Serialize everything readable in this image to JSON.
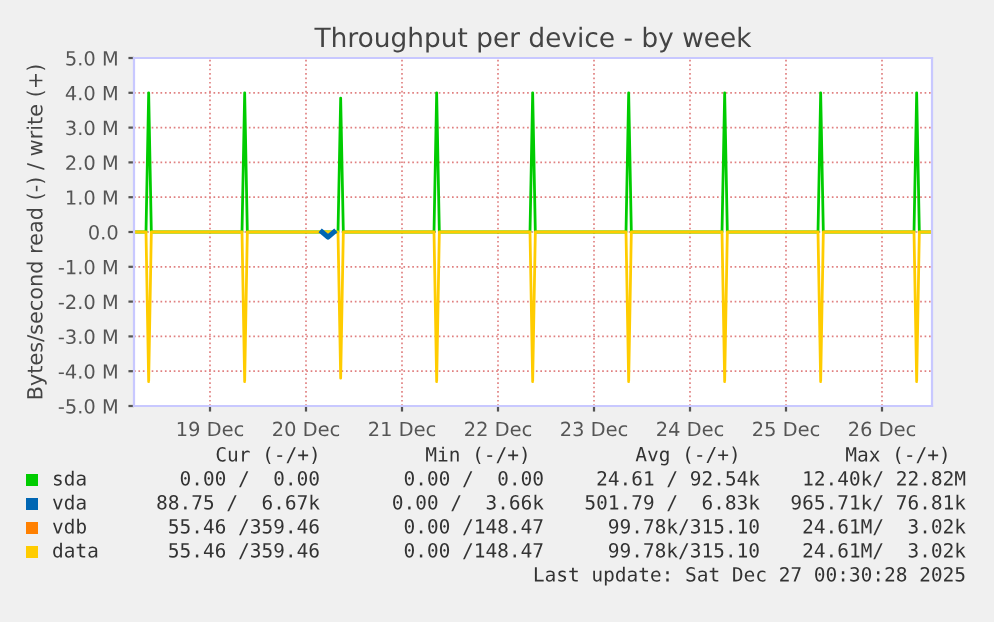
{
  "chart_data": {
    "type": "line",
    "title": "Throughput per device - by week",
    "ylabel": "Bytes/second read (-) / write (+)",
    "xlim": [
      "2025-12-18T17:00",
      "2025-12-27T00:30"
    ],
    "xticks": [
      {
        "value": "2025-12-19T12:00",
        "label": "19 Dec"
      },
      {
        "value": "2025-12-20T12:00",
        "label": "20 Dec"
      },
      {
        "value": "2025-12-21T12:00",
        "label": "21 Dec"
      },
      {
        "value": "2025-12-22T12:00",
        "label": "22 Dec"
      },
      {
        "value": "2025-12-23T12:00",
        "label": "23 Dec"
      },
      {
        "value": "2025-12-24T12:00",
        "label": "24 Dec"
      },
      {
        "value": "2025-12-25T12:00",
        "label": "25 Dec"
      },
      {
        "value": "2025-12-26T12:00",
        "label": "26 Dec"
      }
    ],
    "ylim": [
      -5000000,
      5000000
    ],
    "yticks": [
      {
        "value": -5000000,
        "label": "-5.0 M"
      },
      {
        "value": -4000000,
        "label": "-4.0 M"
      },
      {
        "value": -3000000,
        "label": "-3.0 M"
      },
      {
        "value": -2000000,
        "label": "-2.0 M"
      },
      {
        "value": -1000000,
        "label": "-1.0 M"
      },
      {
        "value": 0,
        "label": "0.0"
      },
      {
        "value": 1000000,
        "label": "1.0 M"
      },
      {
        "value": 2000000,
        "label": "2.0 M"
      },
      {
        "value": 3000000,
        "label": "3.0 M"
      },
      {
        "value": 4000000,
        "label": "4.0 M"
      },
      {
        "value": 5000000,
        "label": "5.0 M"
      }
    ],
    "grid": true,
    "legend": "bottom",
    "marker": "none",
    "line_style": "solid",
    "series": [
      {
        "name": "sda",
        "color": "#00cc00",
        "x": [
          "2025-12-18T17:00",
          "2025-12-18T20:00",
          "2025-12-18T20:40",
          "2025-12-18T21:20",
          "2025-12-19T20:00",
          "2025-12-19T20:40",
          "2025-12-19T21:20",
          "2025-12-20T20:00",
          "2025-12-20T20:40",
          "2025-12-20T21:20",
          "2025-12-21T20:00",
          "2025-12-21T20:40",
          "2025-12-21T21:20",
          "2025-12-22T20:00",
          "2025-12-22T20:40",
          "2025-12-22T21:20",
          "2025-12-23T20:00",
          "2025-12-23T20:40",
          "2025-12-23T21:20",
          "2025-12-24T20:00",
          "2025-12-24T20:40",
          "2025-12-24T21:20",
          "2025-12-25T20:00",
          "2025-12-25T20:40",
          "2025-12-25T21:20",
          "2025-12-26T20:00",
          "2025-12-26T20:40",
          "2025-12-26T21:20",
          "2025-12-27T00:30"
        ],
        "values": [
          0,
          0,
          4000000,
          0,
          0,
          4000000,
          0,
          0,
          3850000,
          0,
          0,
          4000000,
          0,
          0,
          4000000,
          0,
          0,
          4000000,
          0,
          0,
          4000000,
          0,
          0,
          4000000,
          0,
          0,
          4000000,
          0,
          0
        ]
      },
      {
        "name": "vda",
        "color": "#0066b3",
        "x": [
          "2025-12-20T16:00",
          "2025-12-20T17:30",
          "2025-12-20T19:00"
        ],
        "values": [
          0,
          -150000,
          0
        ]
      },
      {
        "name": "vdb",
        "color": "#ff8000"
      },
      {
        "name": "data",
        "color": "#ffcc00",
        "x": [
          "2025-12-18T17:00",
          "2025-12-18T20:00",
          "2025-12-18T20:40",
          "2025-12-18T21:20",
          "2025-12-19T20:00",
          "2025-12-19T20:40",
          "2025-12-19T21:20",
          "2025-12-20T20:00",
          "2025-12-20T20:40",
          "2025-12-20T21:20",
          "2025-12-21T20:00",
          "2025-12-21T20:40",
          "2025-12-21T21:20",
          "2025-12-22T20:00",
          "2025-12-22T20:40",
          "2025-12-22T21:20",
          "2025-12-23T20:00",
          "2025-12-23T20:40",
          "2025-12-23T21:20",
          "2025-12-24T20:00",
          "2025-12-24T20:40",
          "2025-12-24T21:20",
          "2025-12-25T20:00",
          "2025-12-25T20:40",
          "2025-12-25T21:20",
          "2025-12-26T20:00",
          "2025-12-26T20:40",
          "2025-12-26T21:20",
          "2025-12-27T00:30"
        ],
        "values": [
          0,
          0,
          -4300000,
          0,
          0,
          -4300000,
          0,
          0,
          -4200000,
          0,
          0,
          -4300000,
          0,
          0,
          -4300000,
          0,
          0,
          -4300000,
          0,
          0,
          -4300000,
          0,
          0,
          -4300000,
          0,
          0,
          -4300000,
          0,
          0
        ]
      }
    ],
    "annotations": [
      "Cur (-/+)",
      "Min (-/+)",
      "Avg (-/+)",
      "Max (-/+)",
      "0.00 /  0.00",
      "0.00 /  0.00",
      "24.61 / 92.54k",
      "12.40k/ 22.82M",
      "88.75 /  6.67k",
      "0.00 /  3.66k",
      "501.79 /  6.83k",
      "965.71k/ 76.81k",
      "55.46 /359.46",
      "0.00 /148.47",
      "99.78k/315.10",
      "24.61M/  3.02k",
      "55.46 /359.46",
      "0.00 /148.47",
      "99.78k/315.10",
      "24.61M/  3.02k",
      "Last update: Sat Dec 27 00:30:28 2025"
    ]
  }
}
